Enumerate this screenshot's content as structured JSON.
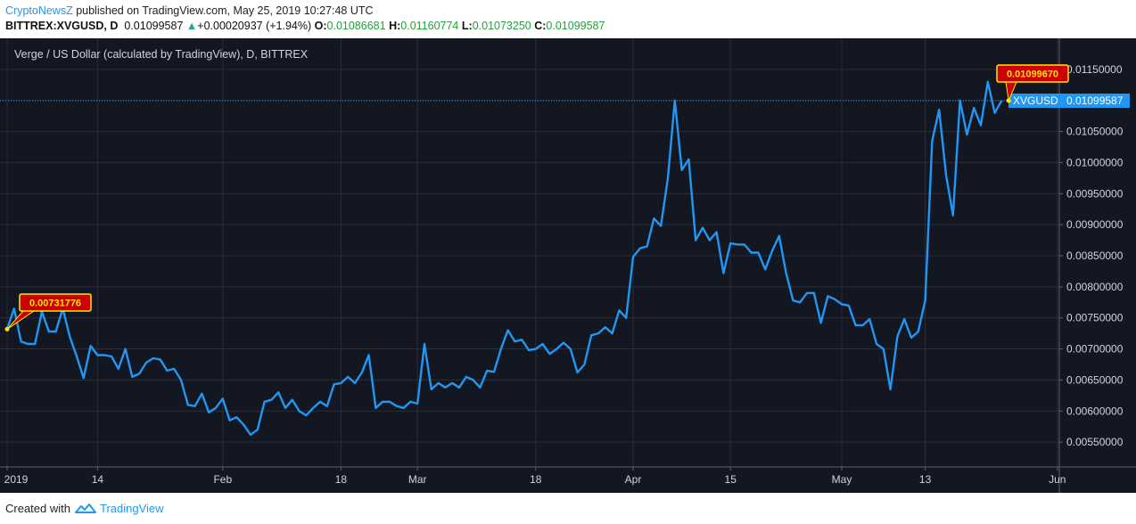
{
  "header": {
    "publisher": "CryptoNewsZ",
    "published_text": "published on TradingView.com, May 25, 2019 10:27:48 UTC",
    "symbol": "BITTREX:XVGUSD, D",
    "last": "0.01099587",
    "change_arrow": "▲",
    "change": "+0.00020937 (+1.94%)",
    "o_label": "O:",
    "o_value": "0.01086681",
    "h_label": "H:",
    "h_value": "0.01160774",
    "l_label": "L:",
    "l_value": "0.01073250",
    "c_label": "C:",
    "c_value": "0.01099587"
  },
  "footer": {
    "created_with": "Created with",
    "brand": "TradingView"
  },
  "colors": {
    "background": "#131722",
    "line": "#2196f3",
    "label_fill": "#cc0000",
    "label_border": "#ffe500",
    "label_text": "#ffe500"
  },
  "chart_data": {
    "type": "line",
    "title": "Verge / US Dollar (calculated by TradingView), D, BITTREX",
    "ylim": [
      0.0051,
      0.012
    ],
    "y_ticks": [
      "0.01150000",
      "0.01100000",
      "0.01050000",
      "0.01000000",
      "0.00950000",
      "0.00900000",
      "0.00850000",
      "0.00800000",
      "0.00750000",
      "0.00700000",
      "0.00650000",
      "0.00600000",
      "0.00550000"
    ],
    "x_ticks": [
      "2019",
      "14",
      "Feb",
      "18",
      "Mar",
      "18",
      "Apr",
      "15",
      "May",
      "13",
      "Jun"
    ],
    "last_price_label": "XVGUSD",
    "last_price": "0.01099587",
    "annotations": [
      {
        "text": "0.00731776",
        "x": "2019-01-01",
        "y": 0.00731776
      },
      {
        "text": "0.01099670",
        "x": "2019-05-25",
        "y": 0.0109967
      }
    ],
    "series": [
      {
        "x_start": "2019-01-01",
        "values": [
          0.00732,
          0.00765,
          0.00712,
          0.00708,
          0.00708,
          0.0076,
          0.00728,
          0.00728,
          0.00765,
          0.0072,
          0.00688,
          0.00653,
          0.00705,
          0.0069,
          0.0069,
          0.00688,
          0.00668,
          0.007,
          0.00655,
          0.0066,
          0.00678,
          0.00685,
          0.00683,
          0.00665,
          0.00668,
          0.0065,
          0.0061,
          0.00608,
          0.00628,
          0.00598,
          0.00605,
          0.0062,
          0.00585,
          0.0059,
          0.00578,
          0.00562,
          0.0057,
          0.00615,
          0.00618,
          0.0063,
          0.00605,
          0.00618,
          0.006,
          0.00593,
          0.00605,
          0.00615,
          0.00608,
          0.00643,
          0.00645,
          0.00655,
          0.00645,
          0.00662,
          0.0069,
          0.00605,
          0.00615,
          0.00615,
          0.00608,
          0.00605,
          0.00615,
          0.00612,
          0.00708,
          0.00635,
          0.00645,
          0.00638,
          0.00645,
          0.00638,
          0.00655,
          0.0065,
          0.00638,
          0.00665,
          0.00663,
          0.007,
          0.0073,
          0.00712,
          0.00715,
          0.00698,
          0.007,
          0.00708,
          0.00692,
          0.007,
          0.0071,
          0.007,
          0.00662,
          0.00675,
          0.00722,
          0.00725,
          0.00735,
          0.00725,
          0.00762,
          0.0075,
          0.00848,
          0.00862,
          0.00865,
          0.0091,
          0.00898,
          0.00975,
          0.011,
          0.00988,
          0.01005,
          0.00875,
          0.00895,
          0.00875,
          0.00888,
          0.00822,
          0.0087,
          0.00868,
          0.00868,
          0.00855,
          0.00855,
          0.00828,
          0.00858,
          0.00882,
          0.00822,
          0.00778,
          0.00775,
          0.0079,
          0.0079,
          0.00742,
          0.00785,
          0.0078,
          0.00772,
          0.0077,
          0.00738,
          0.00738,
          0.00748,
          0.00708,
          0.007,
          0.00635,
          0.0072,
          0.00748,
          0.00718,
          0.00728,
          0.00778,
          0.01035,
          0.01085,
          0.0098,
          0.00915,
          0.011,
          0.01045,
          0.01088,
          0.0106,
          0.0113,
          0.0108,
          0.011
        ]
      }
    ]
  }
}
